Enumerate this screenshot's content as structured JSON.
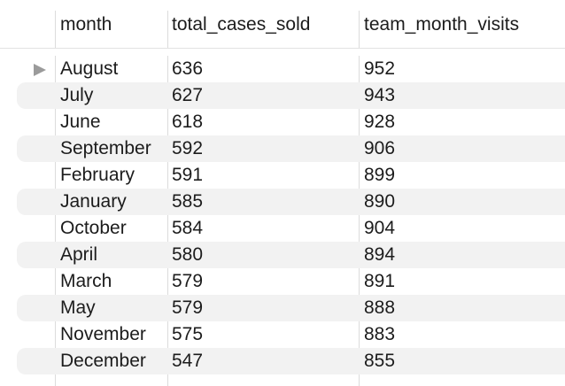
{
  "columns": {
    "month": "month",
    "total_cases_sold": "total_cases_sold",
    "team_month_visits": "team_month_visits"
  },
  "rows": [
    {
      "month": "August",
      "total_cases_sold": "636",
      "team_month_visits": "952"
    },
    {
      "month": "July",
      "total_cases_sold": "627",
      "team_month_visits": "943"
    },
    {
      "month": "June",
      "total_cases_sold": "618",
      "team_month_visits": "928"
    },
    {
      "month": "September",
      "total_cases_sold": "592",
      "team_month_visits": "906"
    },
    {
      "month": "February",
      "total_cases_sold": "591",
      "team_month_visits": "899"
    },
    {
      "month": "January",
      "total_cases_sold": "585",
      "team_month_visits": "890"
    },
    {
      "month": "October",
      "total_cases_sold": "584",
      "team_month_visits": "904"
    },
    {
      "month": "April",
      "total_cases_sold": "580",
      "team_month_visits": "894"
    },
    {
      "month": "March",
      "total_cases_sold": "579",
      "team_month_visits": "891"
    },
    {
      "month": "May",
      "total_cases_sold": "579",
      "team_month_visits": "888"
    },
    {
      "month": "November",
      "total_cases_sold": "575",
      "team_month_visits": "883"
    },
    {
      "month": "December",
      "total_cases_sold": "547",
      "team_month_visits": "855"
    }
  ],
  "icons": {
    "row_indicator": "current-row-indicator-icon"
  },
  "colors": {
    "alternate_row": "#f2f2f2",
    "grid_line": "#dcdcdc",
    "indicator": "#9b9b9b"
  }
}
